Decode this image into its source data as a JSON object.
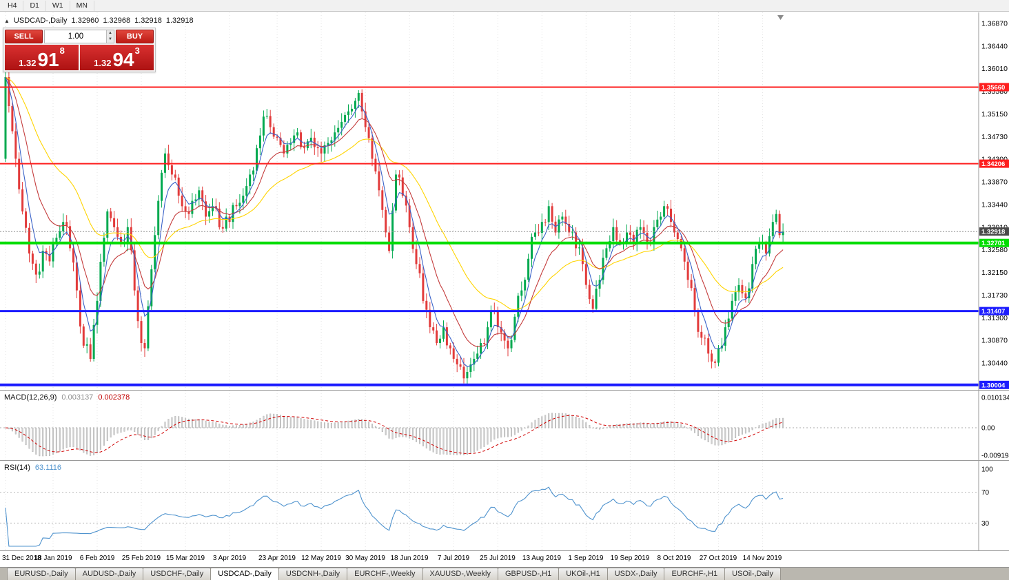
{
  "window": {
    "periods": [
      "H4",
      "D1",
      "W1",
      "MN"
    ]
  },
  "chart": {
    "collapse_icon": "▲",
    "title": {
      "symbol": "USDCAD-,Daily",
      "o": "1.32960",
      "h": "1.32968",
      "l": "1.32918",
      "c": "1.32918"
    },
    "trade_panel": {
      "sell_label": "SELL",
      "buy_label": "BUY",
      "volume": "1.00",
      "sell_price": {
        "prefix": "1.32",
        "big": "91",
        "sup": "8"
      },
      "buy_price": {
        "prefix": "1.32",
        "big": "94",
        "sup": "3"
      }
    },
    "current_price_label": "1.32918",
    "price_axis": [
      "1.36870",
      "1.36440",
      "1.36010",
      "1.35580",
      "1.35150",
      "1.34730",
      "1.34300",
      "1.33870",
      "1.33440",
      "1.33010",
      "1.32580",
      "1.32150",
      "1.31730",
      "1.31300",
      "1.30870",
      "1.30440"
    ],
    "levels": [
      {
        "price": 1.3566,
        "label": "1.35660",
        "color": "#fe1e1e",
        "width": 2
      },
      {
        "price": 1.34206,
        "label": "1.34206",
        "color": "#fe1e1e",
        "width": 2
      },
      {
        "price": 1.32701,
        "label": "1.32701",
        "color": "#00dd00",
        "width": 4
      },
      {
        "price": 1.31407,
        "label": "1.31407",
        "color": "#1c1cfe",
        "width": 3
      },
      {
        "price": 1.30004,
        "label": "1.30004",
        "color": "#1c1cfe",
        "width": 4
      }
    ]
  },
  "macd": {
    "name": "MACD(12,26,9)",
    "value_main": "0.003137",
    "value_signal": "0.002378",
    "axis": [
      {
        "label": "0.010134",
        "value": 0.010134
      },
      {
        "label": "0.00",
        "value": 0
      },
      {
        "label": "-0.0091940",
        "value": -0.009194
      }
    ]
  },
  "rsi": {
    "name": "RSI(14)",
    "value": "63.1116",
    "axis": [
      {
        "label": "100",
        "value": 100
      },
      {
        "label": "70",
        "value": 70
      },
      {
        "label": "30",
        "value": 30
      }
    ],
    "guide_levels": [
      70,
      30
    ]
  },
  "tabs": {
    "active": "USDCAD-,Daily",
    "items": [
      "EURUSD-,Daily",
      "AUDUSD-,Daily",
      "USDCHF-,Daily",
      "USDCAD-,Daily",
      "USDCNH-,Daily",
      "EURCHF-,Weekly",
      "XAUUSD-,Weekly",
      "GBPUSD-,H1",
      "UKOil-,H1",
      "USDX-,Daily",
      "EURCHF-,H1",
      "USOil-,Daily"
    ],
    "note": "USDCAD-,Daily is the selected chart tab"
  },
  "chart_data": {
    "type": "candlestick",
    "symbol": "USDCAD",
    "timeframe": "Daily",
    "bars_total": 230,
    "first_open": 1.343,
    "last_close": 1.32918,
    "y_axis": {
      "top_price": 1.3687,
      "tick_step": 0.0043
    },
    "anchors": [
      [
        0,
        1.3585
      ],
      [
        1,
        1.353
      ],
      [
        3,
        1.343
      ],
      [
        5,
        1.333
      ],
      [
        7,
        1.325
      ],
      [
        9,
        1.321
      ],
      [
        11,
        1.3255
      ],
      [
        13,
        1.3235
      ],
      [
        15,
        1.328
      ],
      [
        17,
        1.331
      ],
      [
        19,
        1.326
      ],
      [
        21,
        1.318
      ],
      [
        23,
        1.3075
      ],
      [
        25,
        1.305
      ],
      [
        27,
        1.316
      ],
      [
        29,
        1.328
      ],
      [
        30,
        1.333
      ],
      [
        32,
        1.33
      ],
      [
        34,
        1.327
      ],
      [
        36,
        1.33
      ],
      [
        38,
        1.318
      ],
      [
        40,
        1.308
      ],
      [
        41,
        1.307
      ],
      [
        43,
        1.322
      ],
      [
        45,
        1.335
      ],
      [
        47,
        1.344
      ],
      [
        49,
        1.34
      ],
      [
        51,
        1.336
      ],
      [
        53,
        1.333
      ],
      [
        55,
        1.335
      ],
      [
        57,
        1.337
      ],
      [
        59,
        1.332
      ],
      [
        61,
        1.334
      ],
      [
        63,
        1.33
      ],
      [
        65,
        1.332
      ],
      [
        66,
        1.331
      ],
      [
        68,
        1.334
      ],
      [
        70,
        1.336
      ],
      [
        72,
        1.34
      ],
      [
        74,
        1.345
      ],
      [
        76,
        1.351
      ],
      [
        78,
        1.349
      ],
      [
        80,
        1.347
      ],
      [
        82,
        1.344
      ],
      [
        84,
        1.346
      ],
      [
        86,
        1.348
      ],
      [
        88,
        1.345
      ],
      [
        90,
        1.347
      ],
      [
        92,
        1.345
      ],
      [
        93,
        1.344
      ],
      [
        95,
        1.346
      ],
      [
        97,
        1.348
      ],
      [
        99,
        1.35
      ],
      [
        101,
        1.352
      ],
      [
        103,
        1.354
      ],
      [
        104,
        1.3555
      ],
      [
        105,
        1.352
      ],
      [
        106,
        1.349
      ],
      [
        108,
        1.343
      ],
      [
        110,
        1.337
      ],
      [
        112,
        1.329
      ],
      [
        113,
        1.3255
      ],
      [
        115,
        1.34
      ],
      [
        117,
        1.336
      ],
      [
        119,
        1.33
      ],
      [
        121,
        1.323
      ],
      [
        123,
        1.316
      ],
      [
        125,
        1.311
      ],
      [
        127,
        1.308
      ],
      [
        129,
        1.311
      ],
      [
        131,
        1.307
      ],
      [
        132,
        1.305
      ],
      [
        134,
        1.3035
      ],
      [
        136,
        1.3025
      ],
      [
        138,
        1.305
      ],
      [
        140,
        1.308
      ],
      [
        142,
        1.311
      ],
      [
        144,
        1.314
      ],
      [
        146,
        1.31
      ],
      [
        148,
        1.307
      ],
      [
        150,
        1.313
      ],
      [
        152,
        1.318
      ],
      [
        154,
        1.324
      ],
      [
        156,
        1.329
      ],
      [
        158,
        1.331
      ],
      [
        160,
        1.334
      ],
      [
        162,
        1.329
      ],
      [
        164,
        1.332
      ],
      [
        166,
        1.329
      ],
      [
        168,
        1.326
      ],
      [
        170,
        1.323
      ],
      [
        173,
        1.3145
      ],
      [
        175,
        1.32
      ],
      [
        177,
        1.326
      ],
      [
        179,
        1.33
      ],
      [
        181,
        1.327
      ],
      [
        183,
        1.329
      ],
      [
        185,
        1.327
      ],
      [
        187,
        1.33
      ],
      [
        189,
        1.327
      ],
      [
        191,
        1.33
      ],
      [
        193,
        1.332
      ],
      [
        194,
        1.334
      ],
      [
        196,
        1.331
      ],
      [
        197,
        1.329
      ],
      [
        199,
        1.326
      ],
      [
        201,
        1.32
      ],
      [
        203,
        1.314
      ],
      [
        205,
        1.309
      ],
      [
        207,
        1.306
      ],
      [
        208,
        1.3045
      ],
      [
        210,
        1.307
      ],
      [
        212,
        1.311
      ],
      [
        214,
        1.316
      ],
      [
        216,
        1.319
      ],
      [
        218,
        1.3165
      ],
      [
        220,
        1.323
      ],
      [
        222,
        1.327
      ],
      [
        224,
        1.325
      ],
      [
        226,
        1.331
      ],
      [
        227,
        1.3325
      ],
      [
        228,
        1.3285
      ],
      [
        229,
        1.32918
      ]
    ],
    "date_labels": [
      {
        "text": "31 Dec 2018",
        "bar": 0
      },
      {
        "text": "18 Jan 2019",
        "bar": 14
      },
      {
        "text": "6 Feb 2019",
        "bar": 27
      },
      {
        "text": "25 Feb 2019",
        "bar": 40
      },
      {
        "text": "15 Mar 2019",
        "bar": 53
      },
      {
        "text": "3 Apr 2019",
        "bar": 66
      },
      {
        "text": "23 Apr 2019",
        "bar": 80
      },
      {
        "text": "12 May 2019",
        "bar": 93
      },
      {
        "text": "30 May 2019",
        "bar": 106
      },
      {
        "text": "18 Jun 2019",
        "bar": 119
      },
      {
        "text": "7 Jul 2019",
        "bar": 132
      },
      {
        "text": "25 Jul 2019",
        "bar": 145
      },
      {
        "text": "13 Aug 2019",
        "bar": 158
      },
      {
        "text": "1 Sep 2019",
        "bar": 171
      },
      {
        "text": "19 Sep 2019",
        "bar": 184
      },
      {
        "text": "8 Oct 2019",
        "bar": 197
      },
      {
        "text": "27 Oct 2019",
        "bar": 210
      },
      {
        "text": "14 Nov 2019",
        "bar": 223
      }
    ],
    "moving_averages": [
      {
        "name": "fast-ma",
        "period": 5,
        "color": "#3a62c8"
      },
      {
        "name": "mid-ma",
        "period": 13,
        "color": "#c43c3c"
      },
      {
        "name": "slow-ma",
        "period": 34,
        "color": "#ffd400"
      }
    ],
    "macd_params": {
      "fast": 12,
      "slow": 26,
      "signal": 9
    },
    "rsi_period": 14
  },
  "colors": {
    "up": "#00a94f",
    "down": "#e23b3b",
    "grid": "#e3e3e3",
    "current_line": "#8a8a8a",
    "current_tag_bg": "#4a4a4a",
    "macd_hist_fill": "#cfcfcf",
    "macd_hist_stroke": "#ababab",
    "macd_signal": "#d00000",
    "rsi_line": "#4f93ce",
    "axis_border": "#9a9a9a"
  }
}
